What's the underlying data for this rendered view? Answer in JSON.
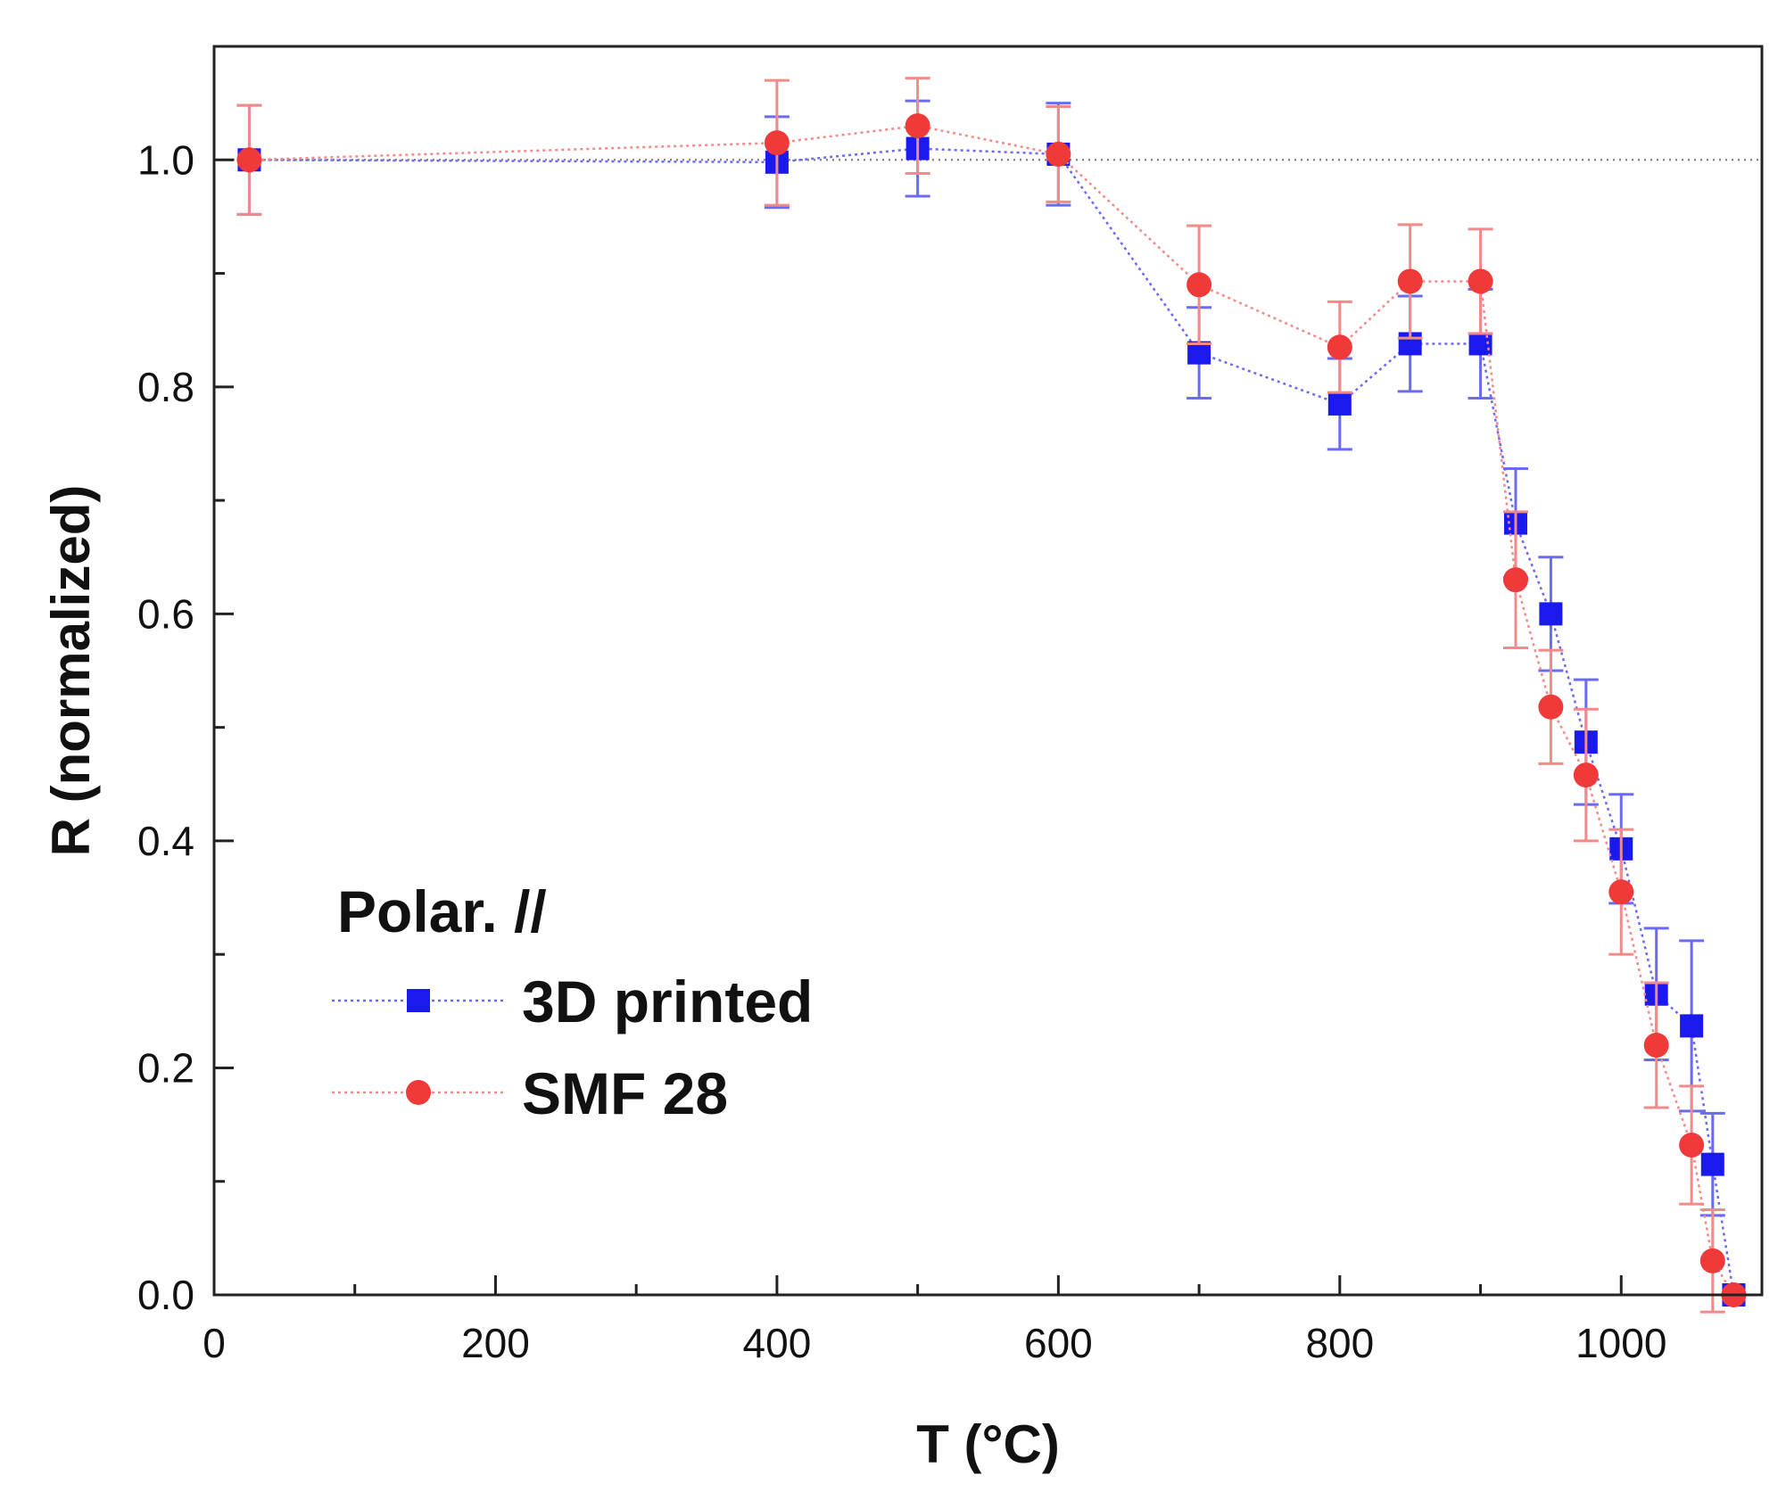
{
  "chart_data": {
    "type": "scatter",
    "xlabel": "T (°C)",
    "ylabel": "R (normalized)",
    "xlim": [
      0,
      1100
    ],
    "ylim": [
      0,
      1.1
    ],
    "x_ticks": [
      "0",
      "200",
      "400",
      "600",
      "800",
      "1000"
    ],
    "x_tick_values": [
      0,
      200,
      400,
      600,
      800,
      1000
    ],
    "y_ticks": [
      "0.0",
      "0.2",
      "0.4",
      "0.6",
      "0.8",
      "1.0"
    ],
    "y_tick_values": [
      0,
      0.2,
      0.4,
      0.6,
      0.8,
      1.0
    ],
    "reference_line_y": 1.0,
    "grid": false,
    "legend": {
      "title": "Polar. //",
      "position": "bottom-left"
    },
    "series": [
      {
        "name": "3D printed",
        "marker": "square",
        "color": "#1a1aee",
        "x": [
          25,
          400,
          500,
          600,
          700,
          800,
          850,
          900,
          925,
          950,
          975,
          1000,
          1025,
          1050,
          1065,
          1080
        ],
        "y": [
          1.0,
          0.998,
          1.01,
          1.005,
          0.83,
          0.785,
          0.838,
          0.838,
          0.68,
          0.6,
          0.487,
          0.393,
          0.265,
          0.237,
          0.115,
          0.0
        ],
        "err": [
          0.048,
          0.04,
          0.042,
          0.045,
          0.04,
          0.04,
          0.042,
          0.048,
          0.048,
          0.05,
          0.055,
          0.048,
          0.058,
          0.075,
          0.045,
          0.0
        ]
      },
      {
        "name": "SMF 28",
        "marker": "circle",
        "color": "#f03a3a",
        "x": [
          25,
          400,
          500,
          600,
          700,
          800,
          850,
          900,
          925,
          950,
          975,
          1000,
          1025,
          1050,
          1065,
          1080
        ],
        "y": [
          1.0,
          1.015,
          1.03,
          1.005,
          0.89,
          0.835,
          0.893,
          0.893,
          0.63,
          0.518,
          0.458,
          0.355,
          0.22,
          0.132,
          0.03,
          0.0
        ],
        "err": [
          0.048,
          0.055,
          0.042,
          0.042,
          0.052,
          0.04,
          0.05,
          0.046,
          0.06,
          0.05,
          0.058,
          0.055,
          0.055,
          0.052,
          0.045,
          0.0
        ]
      }
    ]
  }
}
